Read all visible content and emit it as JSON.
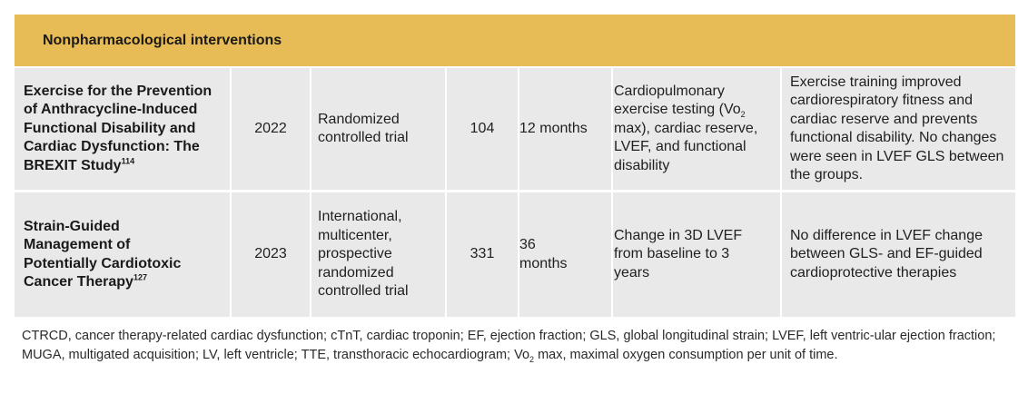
{
  "section": {
    "title": "Nonpharmacological interventions"
  },
  "rows": [
    {
      "title": "Exercise for the Prevention of Anthracycline-Induced Functional Disability and Cardiac Dysfunction: The BREXIT Study",
      "ref": "114",
      "year": "2022",
      "design": "Randomized controlled trial",
      "n": "104",
      "followup": "12 months",
      "endpoint_pre": "Cardiopulmonary exercise testing (Vo",
      "endpoint_sub": "2",
      "endpoint_post": " max), cardiac reserve, LVEF, and functional disability",
      "result": "Exercise training improved cardiorespiratory fitness and cardiac reserve and prevents functional disability. No changes were seen in LVEF GLS between the groups."
    },
    {
      "title": "Strain-Guided Management of Potentially Cardiotoxic Cancer Therapy",
      "ref": "127",
      "year": "2023",
      "design": "International, multicenter, prospective randomized controlled trial",
      "n": "331",
      "followup": "36 months",
      "endpoint": "Change in 3D LVEF from baseline to 3 years",
      "result": "No difference in LVEF change between GLS- and EF-guided cardioprotective therapies"
    }
  ],
  "footnote": {
    "pre": "CTRCD, cancer therapy-related cardiac dysfunction; cTnT, cardiac troponin; EF, ejection fraction; GLS, global longitudinal strain; LVEF, left ventric-ular ejection fraction; MUGA, multigated acquisition; LV, left ventricle; TTE, transthoracic echocardiogram; Vo",
    "sub": "2",
    "post": " max, maximal oxygen consumption per unit of time."
  }
}
